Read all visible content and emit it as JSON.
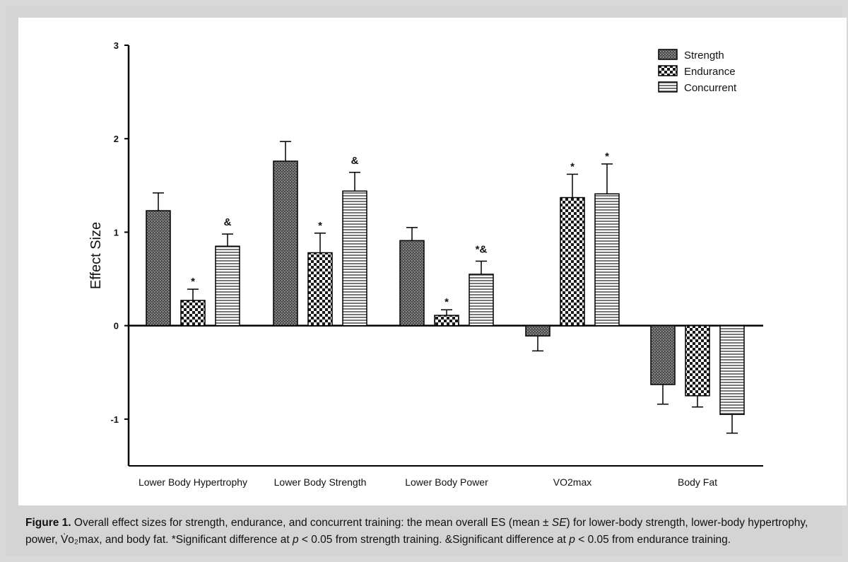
{
  "chart_data": {
    "type": "bar",
    "ylabel": "Effect Size",
    "xlabel": "",
    "ylim": [
      -1.5,
      3
    ],
    "yticks": [
      -1,
      0,
      1,
      2,
      3
    ],
    "ytick_labels": [
      "-1",
      "0",
      "1",
      "2",
      "3"
    ],
    "categories": [
      "Lower Body Hypertrophy",
      "Lower Body Strength",
      "Lower Body Power",
      "VO2max",
      "Body Fat"
    ],
    "legend_position": "top-right",
    "series": [
      {
        "name": "Strength",
        "pattern": "dark-crosshatch",
        "values": [
          1.23,
          1.76,
          0.91,
          -0.11,
          -0.63
        ],
        "errors": [
          0.19,
          0.21,
          0.14,
          0.16,
          0.21
        ],
        "annotations": [
          "",
          "",
          "",
          "",
          ""
        ]
      },
      {
        "name": "Endurance",
        "pattern": "checkerboard",
        "values": [
          0.27,
          0.78,
          0.11,
          1.37,
          -0.75
        ],
        "errors": [
          0.12,
          0.21,
          0.06,
          0.25,
          0.12
        ],
        "annotations": [
          "*",
          "*",
          "*",
          "*",
          ""
        ]
      },
      {
        "name": "Concurrent",
        "pattern": "horizontal-stripes",
        "values": [
          0.85,
          1.44,
          0.55,
          1.41,
          -0.95
        ],
        "errors": [
          0.13,
          0.2,
          0.14,
          0.32,
          0.2
        ],
        "annotations": [
          "&",
          "&",
          "*&",
          "*",
          ""
        ]
      }
    ]
  },
  "caption": {
    "figure_label": "Figure 1.",
    "text_1": " Overall effect sizes for strength, endurance, and concurrent training: the mean overall ES (mean ± ",
    "se": "SE",
    "text_2": ") for lower-body strength, lower-body hypertrophy, power, V̇o₂max, and body fat. *Significant difference at ",
    "p1": "p",
    "text_3": " < 0.05 from strength training. &Significant difference at ",
    "p2": "p",
    "text_4": " < 0.05 from endurance training."
  }
}
